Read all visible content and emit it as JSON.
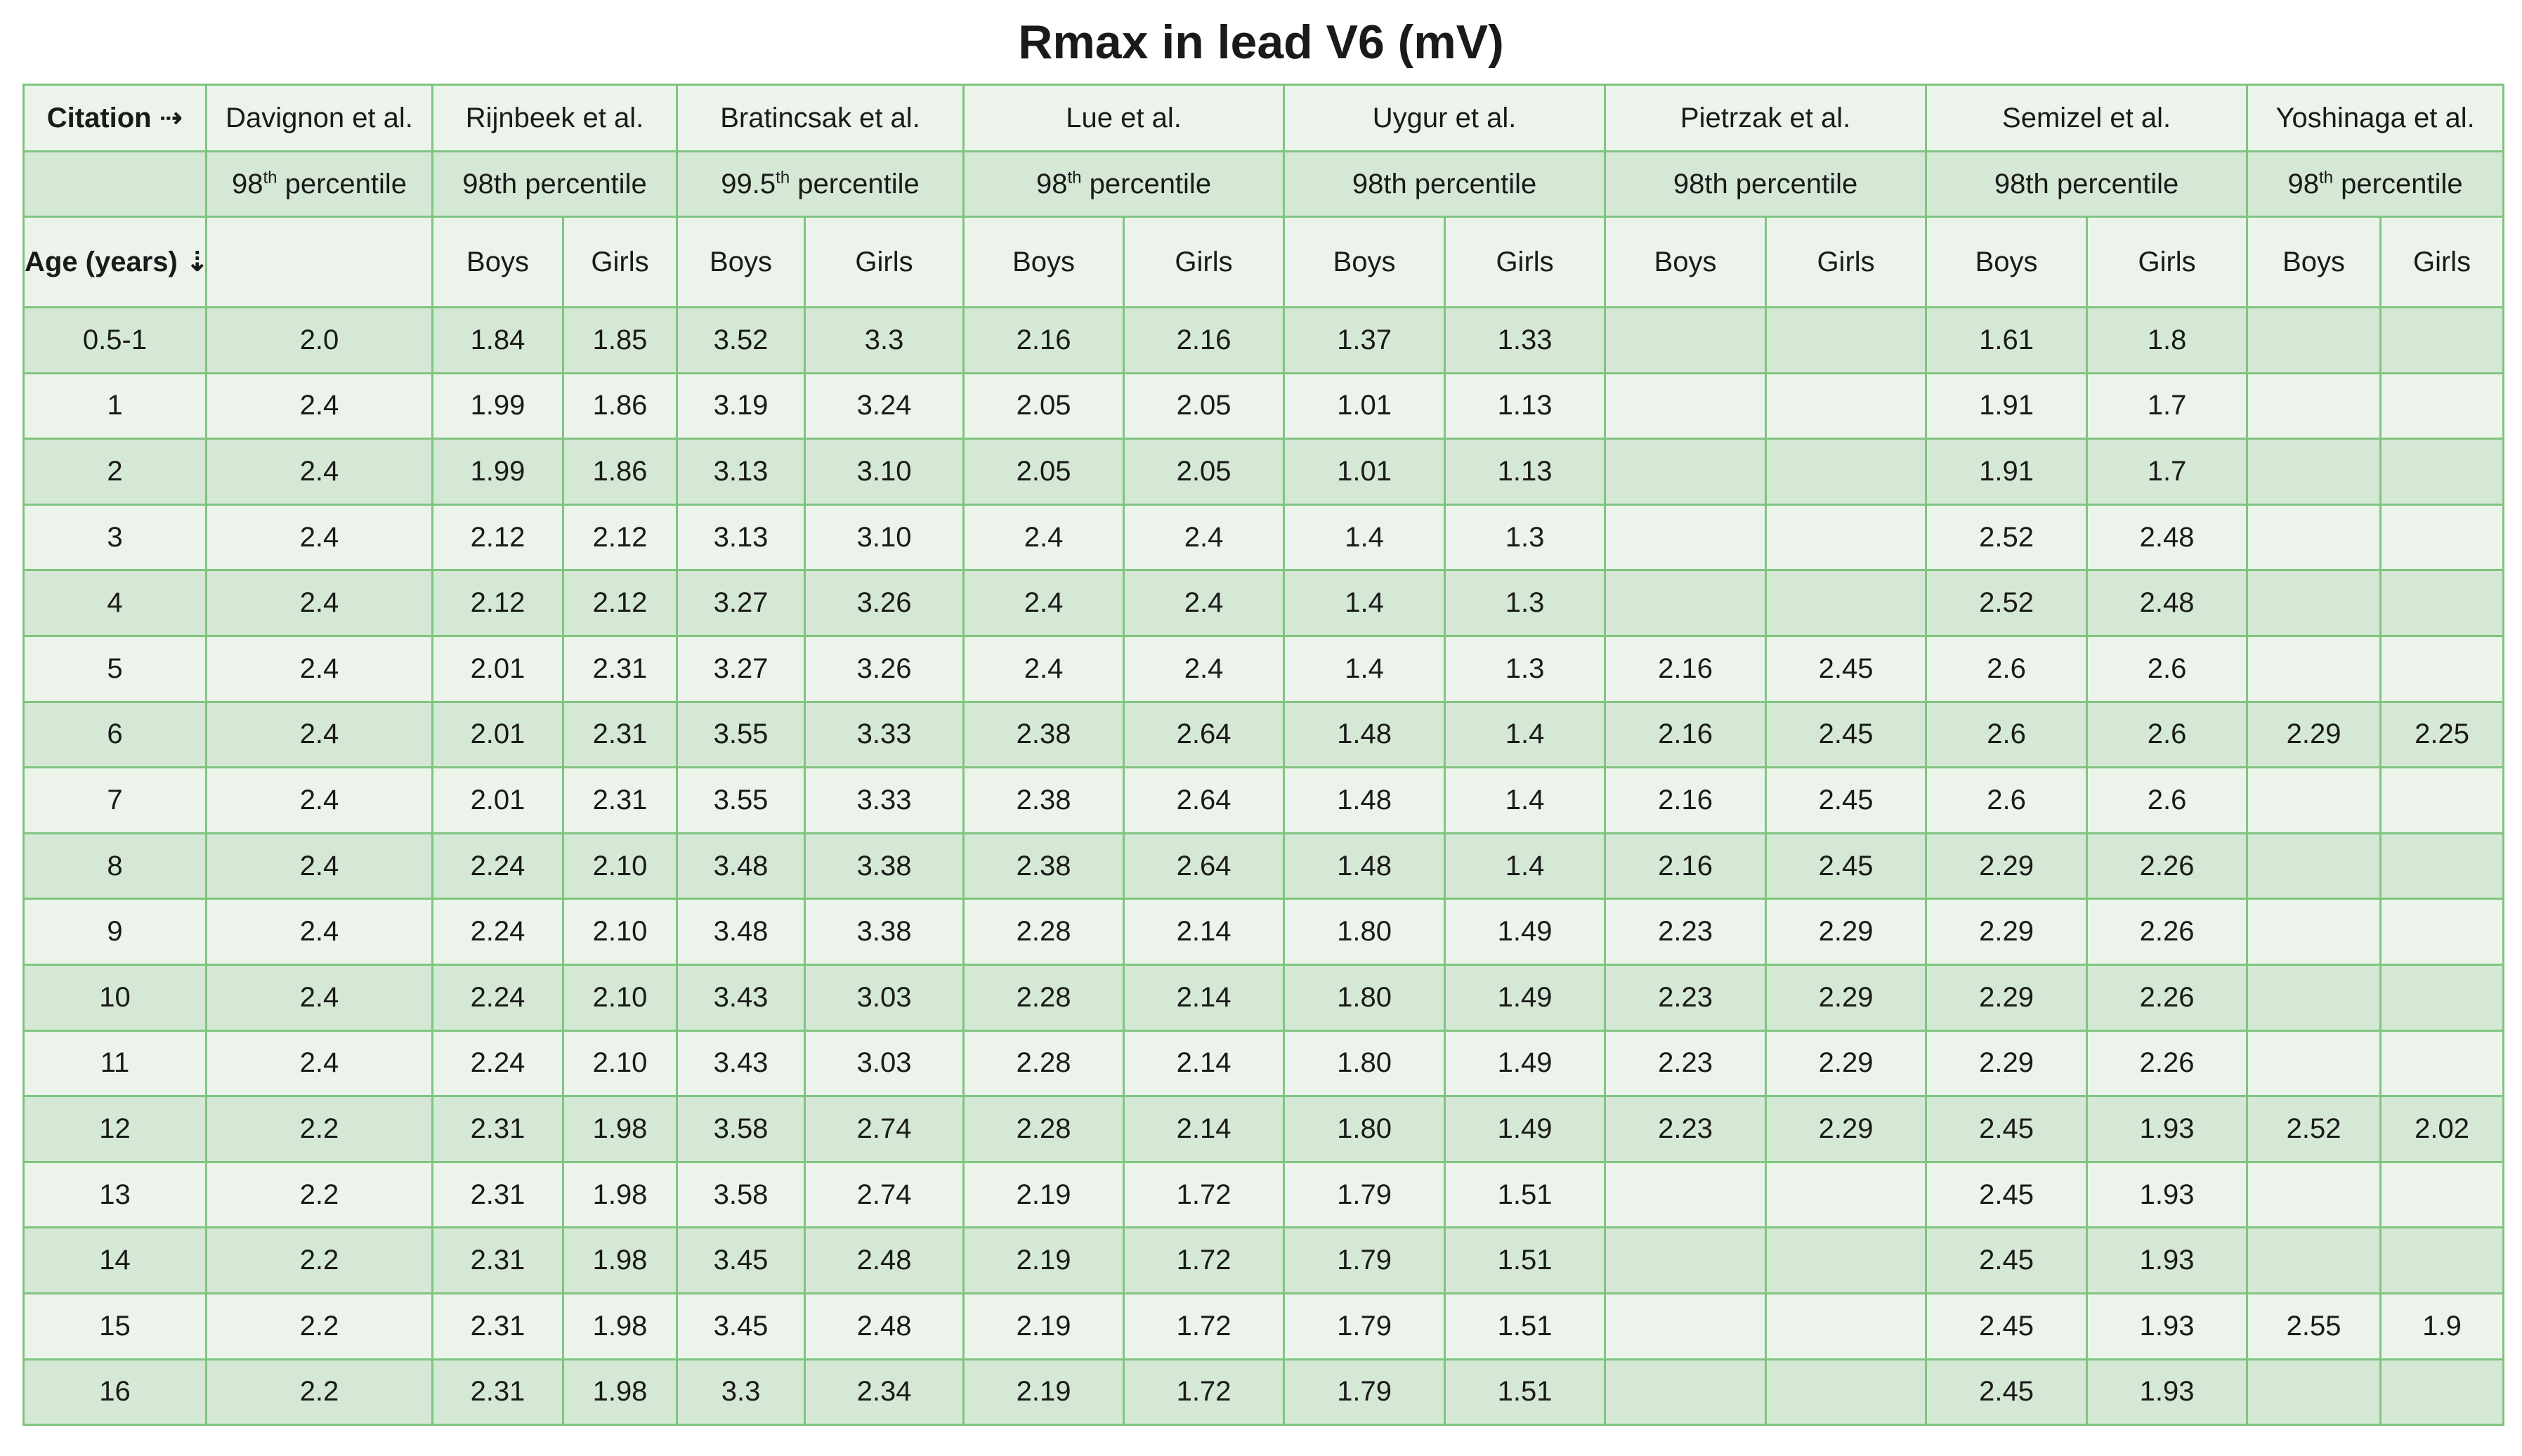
{
  "title": "Rmax in lead V6 (mV)",
  "header": {
    "corner_top": "Citation ⇢",
    "corner_bottom": "Age (years) ⇣",
    "citations": [
      {
        "name": "Davignon et al.",
        "pct_base": "98",
        "pct_sup": "th",
        "pct_rest": " percentile"
      },
      {
        "name": "Rijnbeek et al.",
        "pct_base": "98th percentile",
        "pct_sup": "",
        "pct_rest": ""
      },
      {
        "name": "Bratincsak et al.",
        "pct_base": "99.5",
        "pct_sup": "th",
        "pct_rest": " percentile"
      },
      {
        "name": "Lue et al.",
        "pct_base": "98",
        "pct_sup": "th",
        "pct_rest": " percentile"
      },
      {
        "name": "Uygur et al.",
        "pct_base": "98th percentile",
        "pct_sup": "",
        "pct_rest": ""
      },
      {
        "name": "Pietrzak et al.",
        "pct_base": "98th percentile",
        "pct_sup": "",
        "pct_rest": ""
      },
      {
        "name": "Semizel et al.",
        "pct_base": "98th percentile",
        "pct_sup": "",
        "pct_rest": ""
      },
      {
        "name": "Yoshinaga et al.",
        "pct_base": "98",
        "pct_sup": "th",
        "pct_rest": " percentile"
      }
    ],
    "sex_labels": [
      "",
      "Boys",
      "Girls",
      "Boys",
      "Girls",
      "Boys",
      "Girls",
      "Boys",
      "Girls",
      "Boys",
      "Girls",
      "Boys",
      "Girls",
      "Boys",
      "Girls"
    ]
  },
  "rows": [
    [
      "0.5-1",
      "2.0",
      "1.84",
      "1.85",
      "3.52",
      "3.3",
      "2.16",
      "2.16",
      "1.37",
      "1.33",
      "",
      "",
      "1.61",
      "1.8",
      "",
      ""
    ],
    [
      "1",
      "2.4",
      "1.99",
      "1.86",
      "3.19",
      "3.24",
      "2.05",
      "2.05",
      "1.01",
      "1.13",
      "",
      "",
      "1.91",
      "1.7",
      "",
      ""
    ],
    [
      "2",
      "2.4",
      "1.99",
      "1.86",
      "3.13",
      "3.10",
      "2.05",
      "2.05",
      "1.01",
      "1.13",
      "",
      "",
      "1.91",
      "1.7",
      "",
      ""
    ],
    [
      "3",
      "2.4",
      "2.12",
      "2.12",
      "3.13",
      "3.10",
      "2.4",
      "2.4",
      "1.4",
      "1.3",
      "",
      "",
      "2.52",
      "2.48",
      "",
      ""
    ],
    [
      "4",
      "2.4",
      "2.12",
      "2.12",
      "3.27",
      "3.26",
      "2.4",
      "2.4",
      "1.4",
      "1.3",
      "",
      "",
      "2.52",
      "2.48",
      "",
      ""
    ],
    [
      "5",
      "2.4",
      "2.01",
      "2.31",
      "3.27",
      "3.26",
      "2.4",
      "2.4",
      "1.4",
      "1.3",
      "2.16",
      "2.45",
      "2.6",
      "2.6",
      "",
      ""
    ],
    [
      "6",
      "2.4",
      "2.01",
      "2.31",
      "3.55",
      "3.33",
      "2.38",
      "2.64",
      "1.48",
      "1.4",
      "2.16",
      "2.45",
      "2.6",
      "2.6",
      "2.29",
      "2.25"
    ],
    [
      "7",
      "2.4",
      "2.01",
      "2.31",
      "3.55",
      "3.33",
      "2.38",
      "2.64",
      "1.48",
      "1.4",
      "2.16",
      "2.45",
      "2.6",
      "2.6",
      "",
      ""
    ],
    [
      "8",
      "2.4",
      "2.24",
      "2.10",
      "3.48",
      "3.38",
      "2.38",
      "2.64",
      "1.48",
      "1.4",
      "2.16",
      "2.45",
      "2.29",
      "2.26",
      "",
      ""
    ],
    [
      "9",
      "2.4",
      "2.24",
      "2.10",
      "3.48",
      "3.38",
      "2.28",
      "2.14",
      "1.80",
      "1.49",
      "2.23",
      "2.29",
      "2.29",
      "2.26",
      "",
      ""
    ],
    [
      "10",
      "2.4",
      "2.24",
      "2.10",
      "3.43",
      "3.03",
      "2.28",
      "2.14",
      "1.80",
      "1.49",
      "2.23",
      "2.29",
      "2.29",
      "2.26",
      "",
      ""
    ],
    [
      "11",
      "2.4",
      "2.24",
      "2.10",
      "3.43",
      "3.03",
      "2.28",
      "2.14",
      "1.80",
      "1.49",
      "2.23",
      "2.29",
      "2.29",
      "2.26",
      "",
      ""
    ],
    [
      "12",
      "2.2",
      "2.31",
      "1.98",
      "3.58",
      "2.74",
      "2.28",
      "2.14",
      "1.80",
      "1.49",
      "2.23",
      "2.29",
      "2.45",
      "1.93",
      "2.52",
      "2.02"
    ],
    [
      "13",
      "2.2",
      "2.31",
      "1.98",
      "3.58",
      "2.74",
      "2.19",
      "1.72",
      "1.79",
      "1.51",
      "",
      "",
      "2.45",
      "1.93",
      "",
      ""
    ],
    [
      "14",
      "2.2",
      "2.31",
      "1.98",
      "3.45",
      "2.48",
      "2.19",
      "1.72",
      "1.79",
      "1.51",
      "",
      "",
      "2.45",
      "1.93",
      "",
      ""
    ],
    [
      "15",
      "2.2",
      "2.31",
      "1.98",
      "3.45",
      "2.48",
      "2.19",
      "1.72",
      "1.79",
      "1.51",
      "",
      "",
      "2.45",
      "1.93",
      "2.55",
      "1.9"
    ],
    [
      "16",
      "2.2",
      "2.31",
      "1.98",
      "3.3",
      "2.34",
      "2.19",
      "1.72",
      "1.79",
      "1.51",
      "",
      "",
      "2.45",
      "1.93",
      "",
      ""
    ]
  ]
}
